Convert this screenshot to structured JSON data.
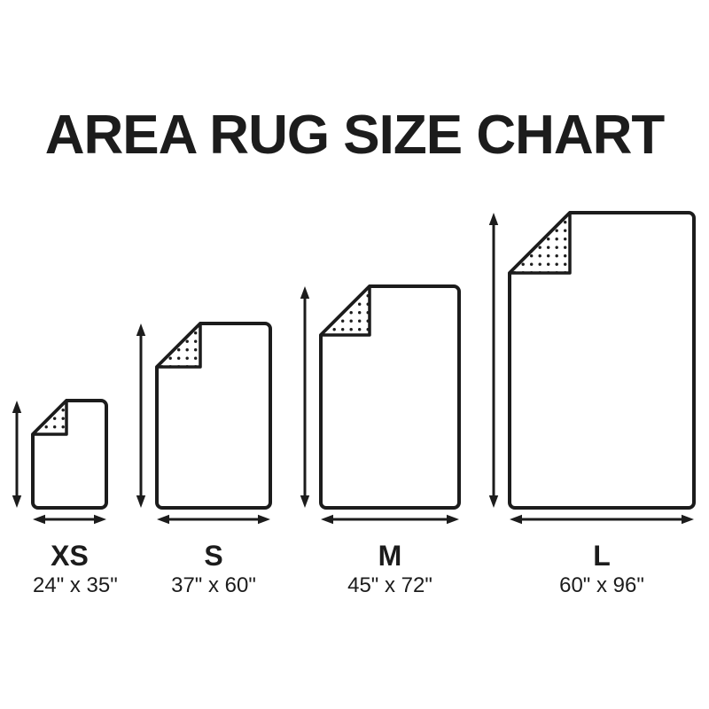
{
  "title": "AREA RUG SIZE CHART",
  "colors": {
    "ink": "#1c1c1c",
    "background": "#ffffff"
  },
  "rugs": [
    {
      "id": "xs",
      "label": "XS",
      "size": "24\" x 35\"",
      "width_in": 24,
      "height_in": 35
    },
    {
      "id": "s",
      "label": "S",
      "size": "37\" x 60\"",
      "width_in": 37,
      "height_in": 60
    },
    {
      "id": "m",
      "label": "M",
      "size": "45\" x 72\"",
      "width_in": 45,
      "height_in": 72
    },
    {
      "id": "l",
      "label": "L",
      "size": "60\" x 96\"",
      "width_in": 60,
      "height_in": 96
    }
  ]
}
